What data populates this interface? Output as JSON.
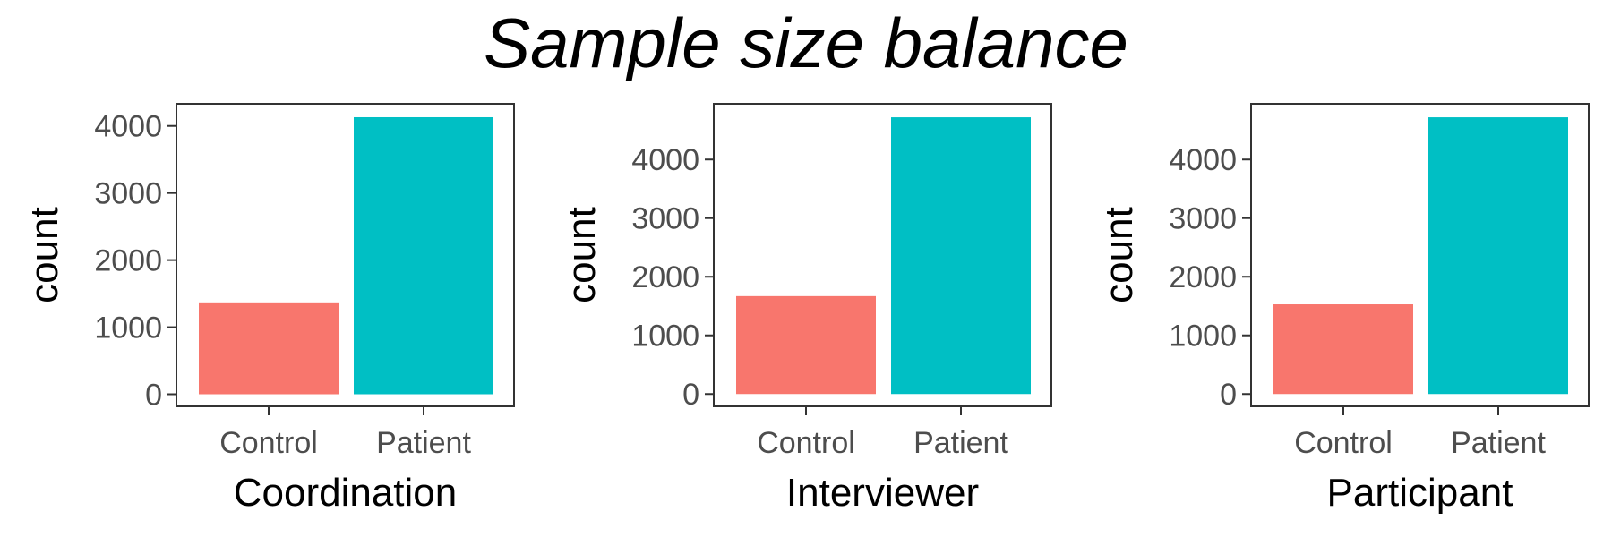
{
  "figure": {
    "title": "Sample size balance",
    "colors": {
      "Control": "#F8766D",
      "Patient": "#00BFC4"
    }
  },
  "chart_data": [
    {
      "type": "bar",
      "xlabel": "Coordination",
      "ylabel": "count",
      "categories": [
        "Control",
        "Patient"
      ],
      "values": [
        1370,
        4130
      ],
      "ylim": [
        -180,
        4330
      ],
      "yticks": [
        0,
        1000,
        2000,
        3000,
        4000
      ],
      "grid": false
    },
    {
      "type": "bar",
      "xlabel": "Interviewer",
      "ylabel": "count",
      "categories": [
        "Control",
        "Patient"
      ],
      "values": [
        1670,
        4720
      ],
      "ylim": [
        -210,
        4950
      ],
      "yticks": [
        0,
        1000,
        2000,
        3000,
        4000
      ],
      "grid": false
    },
    {
      "type": "bar",
      "xlabel": "Participant",
      "ylabel": "count",
      "categories": [
        "Control",
        "Patient"
      ],
      "values": [
        1530,
        4720
      ],
      "ylim": [
        -210,
        4950
      ],
      "yticks": [
        0,
        1000,
        2000,
        3000,
        4000
      ],
      "grid": false
    }
  ]
}
